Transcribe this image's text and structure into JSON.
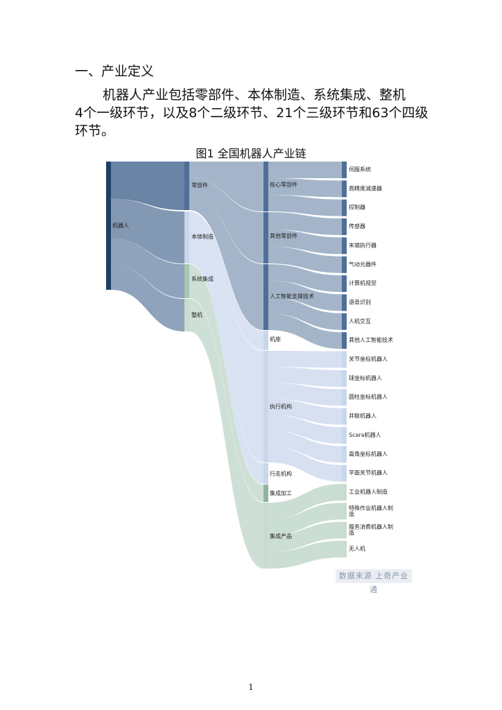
{
  "heading": "一、产业定义",
  "paragraph": [
    "机器人产业包括零部件、本体制造、系统集成、整机",
    "4个一级环节，以及8个二级环节、21个三级环节和63个四级",
    "环节。"
  ],
  "figure_title": "图1 全国机器人产业链",
  "source_note": "数据来源 上奇产业通",
  "page_number": "1",
  "colors": {
    "dark": "#1f3f66",
    "mid": "#4f6f95",
    "light": "#c9d6ec",
    "green": "#b9d3c4"
  },
  "sankey": {
    "level0": [
      "机器人"
    ],
    "level1": [
      "零部件",
      "本体制造",
      "系统集成",
      "整机"
    ],
    "level2": [
      "核心零部件",
      "其他零部件",
      "人工智能支撑技术",
      "机座",
      "执行机构",
      "行走机构",
      "集成加工",
      "集成产品"
    ],
    "level3": [
      "伺服系统",
      "高精度减速器",
      "控制器",
      "传感器",
      "末端执行器",
      "气动元器件",
      "计算机视觉",
      "语音识别",
      "人机交互",
      "其他人工智能技术",
      "关节坐标机器人",
      "球坐标机器人",
      "圆柱坐标机器人",
      "并联机器人",
      "Scara机器人",
      "直角坐标机器人",
      "平面关节机器人",
      "工业机器人制造",
      "特殊作业机器人制造",
      "服务消费机器人制造",
      "无人机"
    ]
  }
}
